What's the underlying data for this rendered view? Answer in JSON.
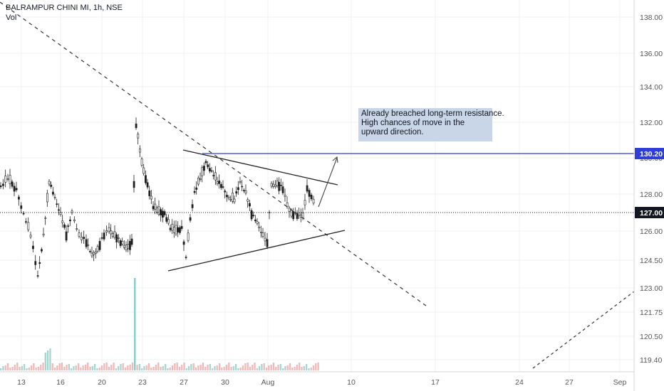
{
  "header": {
    "symbol_line": "BALRAMPUR CHINI MI, 1h, NSE",
    "vol_label": "Vol"
  },
  "annotation": {
    "lines": [
      "Already breached long-term resistance.",
      "High chances of move in the",
      "upward direction."
    ]
  },
  "colors": {
    "up": "#26a69a",
    "down": "#1f1f1f",
    "vol_up": "#a5d6d2",
    "vol_down": "#f2b8b8",
    "vol_spike": "#80cbc4",
    "resistance": "#2f3fd3",
    "grid": "#eef1f5",
    "note_bg": "#c9d6e8"
  },
  "chart_data": {
    "type": "candlestick",
    "title": "BALRAMPUR CHINI MI, 1h, NSE",
    "y_ticks": [
      138.0,
      136.0,
      134.0,
      132.0,
      130.0,
      128.0,
      126.0,
      124.5,
      123.0,
      121.75,
      120.5,
      119.4
    ],
    "x_ticks": [
      "13",
      "16",
      "20",
      "23",
      "27",
      "30",
      "Aug",
      "10",
      "17",
      "24",
      "27",
      "Sep"
    ],
    "price_labels": [
      {
        "value": "130.20",
        "style": "resistance"
      },
      {
        "value": "127.00",
        "style": "last"
      }
    ],
    "lines": [
      {
        "name": "resistance-level",
        "value": 130.2
      },
      {
        "name": "last-price",
        "value": 127.0
      }
    ],
    "grid": true
  }
}
